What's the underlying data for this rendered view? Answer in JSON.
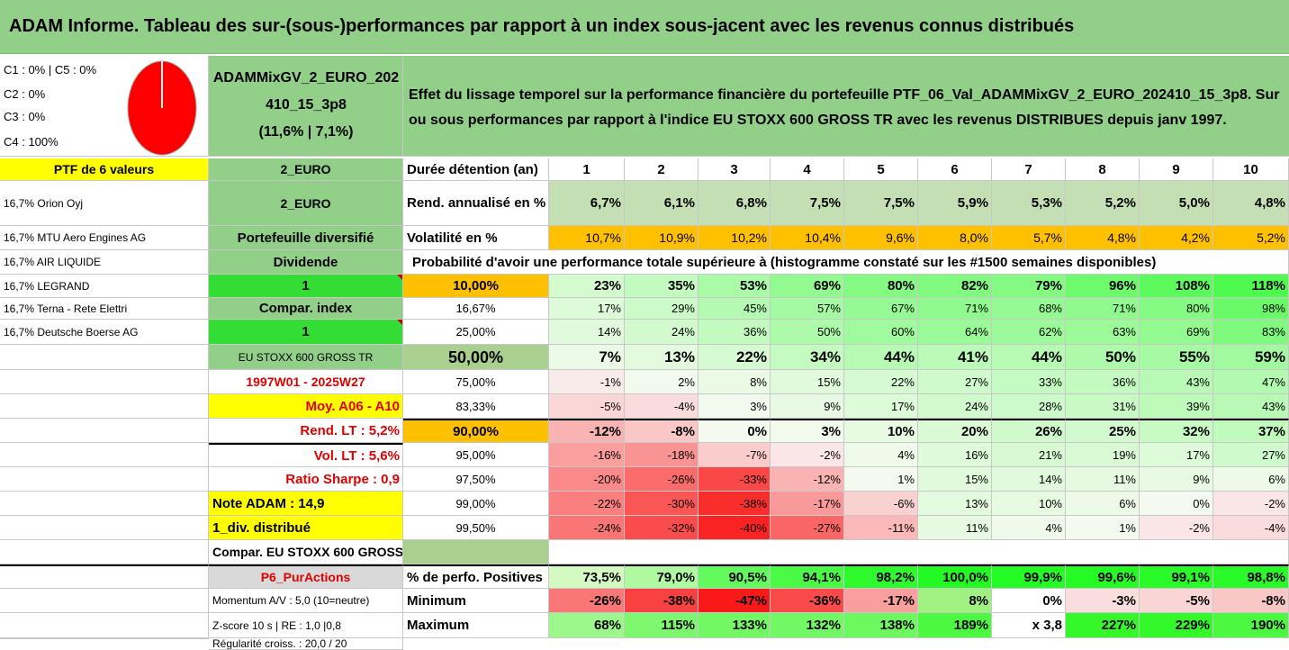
{
  "report": {
    "title": "ADAM Informe. Tableau des sur-(sous-)performances par rapport à un index sous-jacent avec les revenus connus distribués",
    "legend": [
      "C1 : 0% | C5 : 0%",
      "C2 : 0%",
      "C3 : 0%",
      "C4 : 100%"
    ],
    "pie_color": "#ff0000",
    "portfolio_name_lines": [
      "ADAMMixGV_2_EURO_202",
      "410_15_3p8",
      "(11,6% | 7,1%)"
    ],
    "description_lines": [
      "Effet du lissage temporel sur la performance financière du portefeuille PTF_06_Val_ADAMMixGV_2_EURO_202410_15_3p8. Sur",
      "ou sous performances par rapport à l'indice EU STOXX 600 GROSS TR avec les revenus DISTRIBUES depuis janv 1997."
    ],
    "probability_header": "Probabilité d'avoir une performance totale supérieure à (histogramme constaté sur les #1500 semaines disponibles)"
  },
  "left": [
    "PTF de 6 valeurs",
    "16,7% Orion Oyj",
    "16,7% MTU Aero Engines AG",
    "16,7% AIR LIQUIDE",
    "16,7% LEGRAND",
    "16,7% Terna - Rete Elettri",
    "16,7% Deutsche Boerse AG"
  ],
  "mid": [
    "2_EURO",
    "Portefeuille diversifié",
    "Dividende",
    "1",
    "Compar. index",
    "1",
    "EU STOXX 600 GROSS TR",
    "1997W01 - 2025W27",
    "Moy. A06 - A10",
    "Rend. LT : 5,2%",
    "Vol. LT : 5,6%",
    "Ratio Sharpe : 0,9",
    "Note ADAM : 14,9",
    "1_div. distribué",
    "Compar. EU STOXX 600 GROSS TR",
    "P6_PurActions",
    "Momentum A/V : 5,0 (10=neutre)",
    "Z-score 10 s | RE : 1,0 |0,8",
    "Régularité croiss. : 20,0 / 20"
  ],
  "header": {
    "label": "Durée détention (an)",
    "years": [
      "1",
      "2",
      "3",
      "4",
      "5",
      "6",
      "7",
      "8",
      "9",
      "10"
    ]
  },
  "rend": {
    "label": "Rend. annualisé en %",
    "values": [
      "6,7%",
      "6,1%",
      "6,8%",
      "7,5%",
      "7,5%",
      "5,9%",
      "5,3%",
      "5,2%",
      "5,0%",
      "4,8%"
    ]
  },
  "vol": {
    "label": "Volatilité en %",
    "values": [
      "10,7%",
      "10,9%",
      "10,2%",
      "10,4%",
      "9,6%",
      "8,0%",
      "5,7%",
      "4,8%",
      "4,2%",
      "5,2%"
    ]
  },
  "prob": [
    {
      "t": "10,00%",
      "v": [
        "23%",
        "35%",
        "53%",
        "69%",
        "80%",
        "82%",
        "79%",
        "96%",
        "108%",
        "118%"
      ]
    },
    {
      "t": "16,67%",
      "v": [
        "17%",
        "29%",
        "45%",
        "57%",
        "67%",
        "71%",
        "68%",
        "71%",
        "80%",
        "98%"
      ]
    },
    {
      "t": "25,00%",
      "v": [
        "14%",
        "24%",
        "36%",
        "50%",
        "60%",
        "64%",
        "62%",
        "63%",
        "69%",
        "83%"
      ]
    },
    {
      "t": "50,00%",
      "v": [
        "7%",
        "13%",
        "22%",
        "34%",
        "44%",
        "41%",
        "44%",
        "50%",
        "55%",
        "59%"
      ]
    },
    {
      "t": "75,00%",
      "v": [
        "-1%",
        "2%",
        "8%",
        "15%",
        "22%",
        "27%",
        "33%",
        "36%",
        "43%",
        "47%"
      ]
    },
    {
      "t": "83,33%",
      "v": [
        "-5%",
        "-4%",
        "3%",
        "9%",
        "17%",
        "24%",
        "28%",
        "31%",
        "39%",
        "43%"
      ]
    },
    {
      "t": "90,00%",
      "v": [
        "-12%",
        "-8%",
        "0%",
        "3%",
        "10%",
        "20%",
        "26%",
        "25%",
        "32%",
        "37%"
      ]
    },
    {
      "t": "95,00%",
      "v": [
        "-16%",
        "-18%",
        "-7%",
        "-2%",
        "4%",
        "16%",
        "21%",
        "19%",
        "17%",
        "27%"
      ]
    },
    {
      "t": "97,50%",
      "v": [
        "-20%",
        "-26%",
        "-33%",
        "-12%",
        "1%",
        "15%",
        "14%",
        "11%",
        "9%",
        "6%"
      ]
    },
    {
      "t": "99,00%",
      "v": [
        "-22%",
        "-30%",
        "-38%",
        "-17%",
        "-6%",
        "13%",
        "10%",
        "6%",
        "0%",
        "-2%"
      ]
    },
    {
      "t": "99,50%",
      "v": [
        "-24%",
        "-32%",
        "-40%",
        "-27%",
        "-11%",
        "11%",
        "4%",
        "1%",
        "-2%",
        "-4%"
      ]
    }
  ],
  "pos": {
    "label": "% de perfo. Positives",
    "values": [
      "73,5%",
      "79,0%",
      "90,5%",
      "94,1%",
      "98,2%",
      "100,0%",
      "99,9%",
      "99,6%",
      "99,1%",
      "98,8%"
    ]
  },
  "min": {
    "label": "Minimum",
    "values": [
      "-26%",
      "-38%",
      "-47%",
      "-36%",
      "-17%",
      "8%",
      "0%",
      "-3%",
      "-5%",
      "-8%"
    ]
  },
  "max": {
    "label": "Maximum",
    "values": [
      "68%",
      "115%",
      "133%",
      "132%",
      "138%",
      "189%",
      "x 3,8",
      "227%",
      "229%",
      "190%"
    ]
  }
}
